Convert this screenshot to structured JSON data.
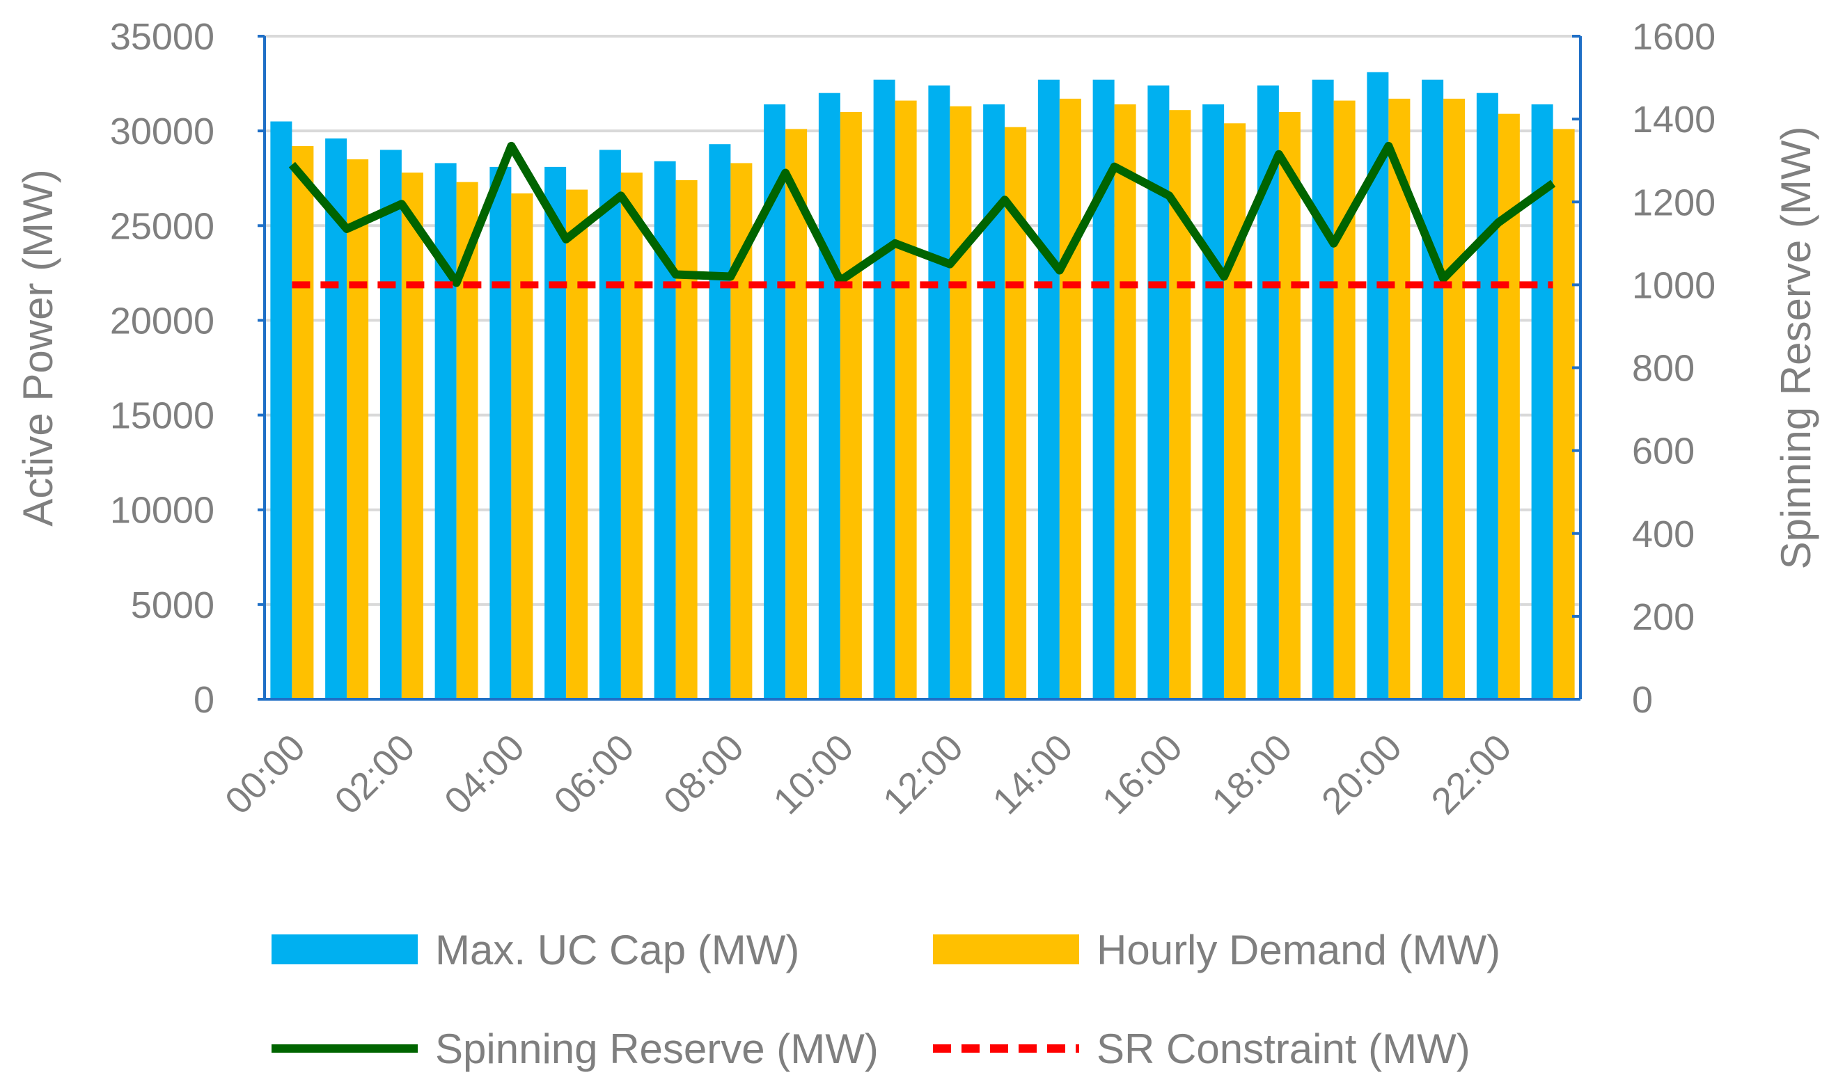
{
  "chart_data": {
    "type": "bar",
    "categories": [
      "00:00",
      "01:00",
      "02:00",
      "03:00",
      "04:00",
      "05:00",
      "06:00",
      "07:00",
      "08:00",
      "09:00",
      "10:00",
      "11:00",
      "12:00",
      "13:00",
      "14:00",
      "15:00",
      "16:00",
      "17:00",
      "18:00",
      "19:00",
      "20:00",
      "21:00",
      "22:00",
      "23:00"
    ],
    "x_tick_labels": [
      "00:00",
      "02:00",
      "04:00",
      "06:00",
      "08:00",
      "10:00",
      "12:00",
      "14:00",
      "16:00",
      "18:00",
      "20:00",
      "22:00"
    ],
    "ylabel": "Active Power (MW)",
    "y2label": "Spinning Reserve (MW)",
    "ylim": [
      0,
      35000
    ],
    "y2lim": [
      0,
      1600
    ],
    "yticks": [
      0,
      5000,
      10000,
      15000,
      20000,
      25000,
      30000,
      35000
    ],
    "y2ticks": [
      0,
      200,
      400,
      600,
      800,
      1000,
      1200,
      1400,
      1600
    ],
    "grid": true,
    "legend_position": "bottom",
    "series": [
      {
        "name": "Max. UC Cap (MW)",
        "type": "bar",
        "axis": "left",
        "color": "#00b0f0",
        "values": [
          30500,
          29600,
          29000,
          28300,
          28100,
          28100,
          29000,
          28400,
          29300,
          31400,
          32000,
          32700,
          32400,
          31400,
          32700,
          32700,
          32400,
          31400,
          32400,
          32700,
          33100,
          32700,
          32000,
          31400
        ]
      },
      {
        "name": "Hourly Demand (MW)",
        "type": "bar",
        "axis": "left",
        "color": "#ffc000",
        "values": [
          29200,
          28500,
          27800,
          27300,
          26700,
          26900,
          27800,
          27400,
          28300,
          30100,
          31000,
          31600,
          31300,
          30200,
          31700,
          31400,
          31100,
          30400,
          31000,
          31600,
          31700,
          31700,
          30900,
          30100
        ]
      },
      {
        "name": "Spinning Reserve (MW)",
        "type": "line",
        "axis": "right",
        "color": "#006400",
        "values": [
          1290,
          1135,
          1195,
          1005,
          1335,
          1110,
          1215,
          1025,
          1020,
          1270,
          1010,
          1100,
          1050,
          1205,
          1035,
          1285,
          1215,
          1020,
          1315,
          1100,
          1335,
          1015,
          1150,
          1245
        ]
      },
      {
        "name": "SR Constraint (MW)",
        "type": "line",
        "style": "dashed",
        "axis": "right",
        "color": "#ff0000",
        "values": [
          1000,
          1000,
          1000,
          1000,
          1000,
          1000,
          1000,
          1000,
          1000,
          1000,
          1000,
          1000,
          1000,
          1000,
          1000,
          1000,
          1000,
          1000,
          1000,
          1000,
          1000,
          1000,
          1000,
          1000
        ]
      }
    ],
    "colors": {
      "grid": "#d9d9d9",
      "axis": "#1f6fc6",
      "text": "#7f7f7f"
    }
  }
}
